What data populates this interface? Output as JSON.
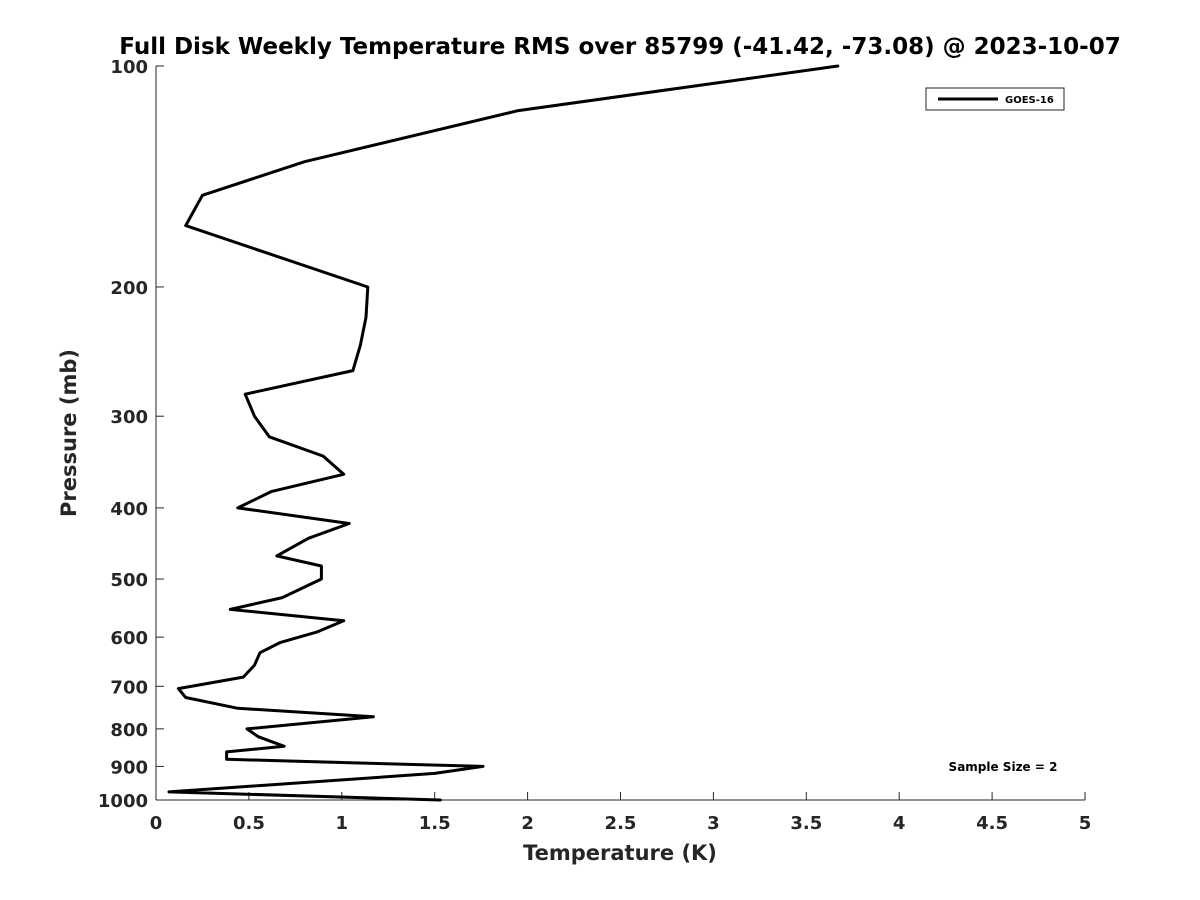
{
  "chart_data": {
    "type": "line",
    "title": "Full Disk Weekly Temperature RMS over 85799 (-41.42, -73.08) @ 2023-10-07",
    "xlabel": "Temperature (K)",
    "ylabel": "Pressure (mb)",
    "xlim": [
      0,
      5
    ],
    "ylim": [
      100,
      1000
    ],
    "yscale": "log",
    "y_reversed": true,
    "grid": false,
    "x_ticks": [
      0,
      0.5,
      1,
      1.5,
      2,
      2.5,
      3,
      3.5,
      4,
      4.5,
      5
    ],
    "x_tick_labels": [
      "0",
      "0.5",
      "1",
      "1.5",
      "2",
      "2.5",
      "3",
      "3.5",
      "4",
      "4.5",
      "5"
    ],
    "y_ticks": [
      100,
      200,
      300,
      400,
      500,
      600,
      700,
      800,
      900,
      1000
    ],
    "y_tick_labels": [
      "100",
      "200",
      "300",
      "400",
      "500",
      "600",
      "700",
      "800",
      "900",
      "1000"
    ],
    "legend_position": "top-right",
    "annotation": "Sample Size = 2",
    "series": [
      {
        "name": "GOES-16",
        "color": "#000000",
        "x": [
          3.67,
          1.95,
          0.8,
          0.25,
          0.16,
          1.14,
          1.13,
          1.1,
          1.06,
          0.48,
          0.53,
          0.61,
          0.9,
          1.01,
          0.62,
          0.44,
          1.04,
          0.82,
          0.65,
          0.89,
          0.89,
          0.68,
          0.4,
          1.01,
          0.87,
          0.67,
          0.56,
          0.53,
          0.47,
          0.12,
          0.16,
          0.44,
          1.17,
          0.49,
          0.55,
          0.69,
          0.38,
          0.38,
          1.76,
          1.5,
          0.07,
          1.53
        ],
        "y": [
          100,
          115,
          135,
          150,
          165,
          200,
          220,
          240,
          260,
          280,
          300,
          320,
          340,
          360,
          380,
          400,
          420,
          440,
          465,
          480,
          500,
          530,
          550,
          570,
          590,
          610,
          630,
          655,
          680,
          705,
          725,
          750,
          770,
          800,
          820,
          845,
          860,
          880,
          900,
          920,
          975,
          1000
        ]
      }
    ]
  }
}
